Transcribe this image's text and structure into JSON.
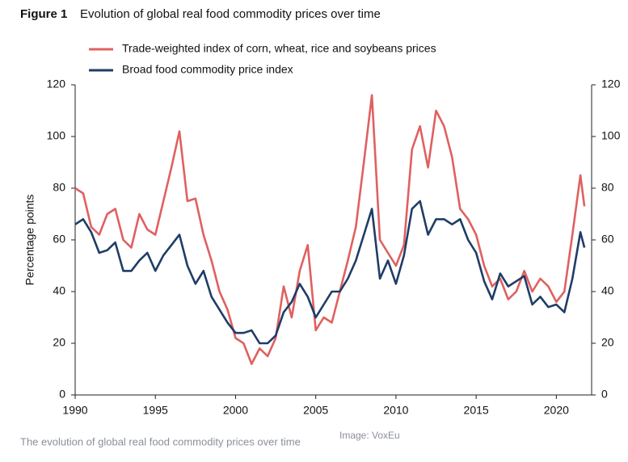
{
  "chart_data": {
    "type": "line",
    "figure_label": "Figure 1",
    "title": "Evolution of global real food commodity prices over time",
    "y_label": "Percentage points",
    "caption": "The evolution of global real food commodity prices over time",
    "credit": "Image: VoxEu",
    "x": [
      1990,
      1990.5,
      1991,
      1991.5,
      1992,
      1992.5,
      1993,
      1993.5,
      1994,
      1994.5,
      1995,
      1995.5,
      1996,
      1996.5,
      1997,
      1997.5,
      1998,
      1998.5,
      1999,
      1999.5,
      2000,
      2000.5,
      2001,
      2001.5,
      2002,
      2002.5,
      2003,
      2003.5,
      2004,
      2004.5,
      2005,
      2005.5,
      2006,
      2006.5,
      2007,
      2007.5,
      2008,
      2008.5,
      2009,
      2009.5,
      2010,
      2010.5,
      2011,
      2011.5,
      2012,
      2012.5,
      2013,
      2013.5,
      2014,
      2014.5,
      2015,
      2015.5,
      2016,
      2016.5,
      2017,
      2017.5,
      2018,
      2018.5,
      2019,
      2019.5,
      2020,
      2020.5,
      2021,
      2021.5,
      2021.75
    ],
    "series": [
      {
        "name": "Trade-weighted index of corn, wheat, rice and soybeans prices",
        "color": "#e06060",
        "values": [
          80,
          78,
          65,
          62,
          70,
          72,
          60,
          57,
          70,
          64,
          62,
          75,
          88,
          102,
          75,
          76,
          62,
          52,
          40,
          33,
          22,
          20,
          12,
          18,
          15,
          22,
          42,
          30,
          48,
          58,
          25,
          30,
          28,
          40,
          52,
          65,
          90,
          116,
          60,
          55,
          50,
          58,
          95,
          104,
          88,
          110,
          104,
          92,
          72,
          68,
          62,
          50,
          42,
          45,
          37,
          40,
          48,
          40,
          45,
          42,
          36,
          40,
          62,
          85,
          73
        ]
      },
      {
        "name": "Broad food commodity price index",
        "color": "#1f3d66",
        "values": [
          66,
          68,
          63,
          55,
          56,
          59,
          48,
          48,
          52,
          55,
          48,
          54,
          58,
          62,
          50,
          43,
          48,
          38,
          33,
          28,
          24,
          24,
          25,
          20,
          20,
          23,
          32,
          36,
          43,
          38,
          30,
          35,
          40,
          40,
          45,
          52,
          62,
          72,
          45,
          52,
          43,
          54,
          72,
          75,
          62,
          68,
          68,
          66,
          68,
          60,
          55,
          44,
          37,
          47,
          42,
          44,
          46,
          35,
          38,
          34,
          35,
          32,
          45,
          63,
          57
        ]
      }
    ],
    "xlim": [
      1990,
      2022.2
    ],
    "xticks": [
      1990,
      1995,
      2000,
      2005,
      2010,
      2015,
      2020
    ],
    "ylim": [
      0,
      120
    ],
    "yticks": [
      0,
      20,
      40,
      60,
      80,
      100,
      120
    ],
    "y2lim": [
      0,
      120
    ],
    "y2ticks": [
      0,
      20,
      40,
      60,
      80,
      100,
      120
    ],
    "grid": false
  }
}
